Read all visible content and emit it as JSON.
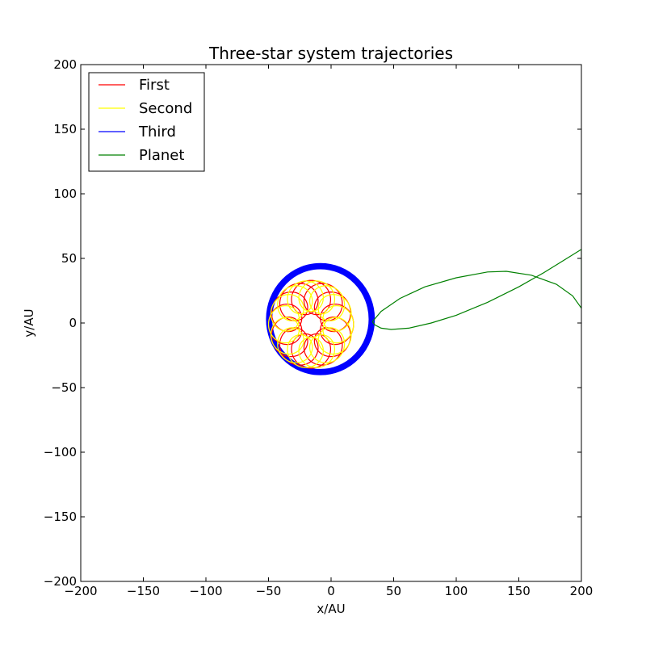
{
  "chart_data": {
    "type": "line",
    "title": "Three-star system trajectories",
    "xlabel": "x/AU",
    "ylabel": "y/AU",
    "xlim": [
      -200,
      200
    ],
    "ylim": [
      -200,
      200
    ],
    "xticks": [
      -200,
      -150,
      -100,
      -50,
      0,
      50,
      100,
      150,
      200
    ],
    "yticks": [
      -200,
      -150,
      -100,
      -50,
      0,
      50,
      100,
      150,
      200
    ],
    "x_tick_labels": [
      "−200",
      "−150",
      "−100",
      "−50",
      "0",
      "50",
      "100",
      "150",
      "200"
    ],
    "y_tick_labels": [
      "−200",
      "−150",
      "−100",
      "−50",
      "0",
      "50",
      "100",
      "150",
      "200"
    ],
    "grid": false,
    "legend_position": "top-left",
    "series": [
      {
        "name": "First",
        "color": "#ff0000",
        "style": "epicycle",
        "center": [
          -16,
          -1
        ],
        "orbit_radius": 21,
        "loop_radius": 13,
        "revolutions": 9,
        "loops_per_revolution": 13
      },
      {
        "name": "Second",
        "color": "#ffff00",
        "style": "epicycle",
        "center": [
          -16,
          -1
        ],
        "orbit_radius": 22,
        "loop_radius": 12,
        "revolutions": 9,
        "loops_per_revolution": 15
      },
      {
        "name": "Third",
        "color": "#0000ff",
        "style": "ring",
        "center": [
          -8.5,
          3
        ],
        "radius": 41,
        "band_width": 2.5
      },
      {
        "name": "Planet",
        "color": "#008000",
        "style": "curve",
        "points": [
          [
            33,
            1
          ],
          [
            40,
            9
          ],
          [
            55,
            19
          ],
          [
            75,
            28
          ],
          [
            100,
            35
          ],
          [
            125,
            39.5
          ],
          [
            140,
            40
          ],
          [
            160,
            37
          ],
          [
            180,
            30
          ],
          [
            193,
            21
          ],
          [
            200,
            11.5
          ],
          [
            200,
            57
          ],
          [
            185,
            48
          ],
          [
            170,
            39
          ],
          [
            150,
            28
          ],
          [
            125,
            16
          ],
          [
            100,
            6
          ],
          [
            80,
            0
          ],
          [
            62,
            -4
          ],
          [
            48,
            -5
          ],
          [
            40,
            -4
          ],
          [
            35,
            -1.5
          ],
          [
            33,
            1
          ]
        ]
      }
    ]
  }
}
